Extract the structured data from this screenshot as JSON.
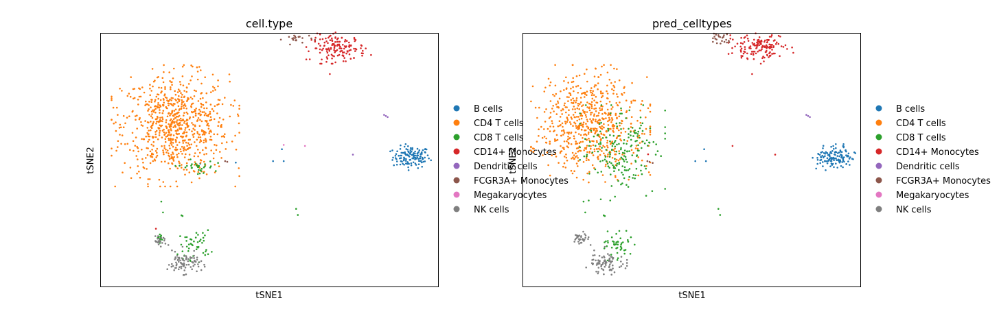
{
  "figure": {
    "background": "#ffffff"
  },
  "legend_entries": [
    {
      "label": "B cells",
      "color": "#1f77b4"
    },
    {
      "label": "CD4 T cells",
      "color": "#ff7f0e"
    },
    {
      "label": "CD8 T cells",
      "color": "#2ca02c"
    },
    {
      "label": "CD14+ Monocytes",
      "color": "#d62728"
    },
    {
      "label": "Dendritic cells",
      "color": "#9467bd"
    },
    {
      "label": "FCGR3A+ Monocytes",
      "color": "#8c564b"
    },
    {
      "label": "Megakaryocytes",
      "color": "#e377c2"
    },
    {
      "label": "NK cells",
      "color": "#7f7f7f"
    }
  ],
  "chart_data": [
    {
      "type": "scatter",
      "title": "cell.type",
      "xlabel": "tSNE1",
      "ylabel": "tSNE2",
      "xticks": [],
      "yticks": [],
      "grid": false,
      "legend_position": "right",
      "xlim": [
        -50,
        45
      ],
      "ylim": [
        -35,
        35
      ],
      "series": [
        {
          "name": "B cells",
          "color": "#1f77b4",
          "clusters": [
            {
              "center": [
                37.5,
                0.8
              ],
              "spread": [
                2.6,
                1.5
              ],
              "count": 130
            }
          ],
          "points": [
            [
              1.0,
              3.0
            ],
            [
              -1.5,
              -0.3
            ],
            [
              1.5,
              -0.3
            ],
            [
              -22,
              -1.0
            ],
            [
              -12,
              -0.7
            ]
          ]
        },
        {
          "name": "CD4 T cells",
          "color": "#ff7f0e",
          "clusters": [
            {
              "center": [
                -29,
                9.5
              ],
              "spread": [
                7.5,
                7.0
              ],
              "count": 780
            }
          ],
          "points": [
            [
              -46.5,
              14.5
            ],
            [
              -45.5,
              14.5
            ],
            [
              -42.5,
              4.5
            ]
          ]
        },
        {
          "name": "CD8 T cells",
          "color": "#2ca02c",
          "clusters": [
            {
              "center": [
                -23.5,
                -23.5
              ],
              "spread": [
                2.2,
                2.0
              ],
              "count": 45
            },
            {
              "center": [
                -23,
                -2.0
              ],
              "spread": [
                2.5,
                1.0
              ],
              "count": 30
            },
            {
              "center": [
                -33.5,
                -21.5
              ],
              "spread": [
                0.8,
                0.6
              ],
              "count": 12
            }
          ],
          "points": [
            [
              -33,
              -11.5
            ],
            [
              -32.5,
              -14.5
            ],
            [
              -27,
              -15.5
            ],
            [
              -27.3,
              -15.3
            ],
            [
              5,
              -13.5
            ],
            [
              5.5,
              -15.2
            ]
          ]
        },
        {
          "name": "CD14+ Monocytes",
          "color": "#d62728",
          "clusters": [
            {
              "center": [
                17,
                31.0
              ],
              "spread": [
                3.8,
                1.8
              ],
              "count": 145
            }
          ],
          "points": [
            [
              14.5,
              23.8
            ],
            [
              -34.5,
              -19.0
            ]
          ]
        },
        {
          "name": "Dendritic cells",
          "color": "#9467bd",
          "points": [
            [
              29.8,
              12.5
            ],
            [
              30.3,
              12.2
            ],
            [
              30.8,
              11.9
            ],
            [
              21.0,
              1.5
            ]
          ]
        },
        {
          "name": "FCGR3A+ Monocytes",
          "color": "#8c564b",
          "clusters": [
            {
              "center": [
                5.5,
                33.5
              ],
              "spread": [
                2.0,
                0.7
              ],
              "count": 22
            }
          ],
          "points": [
            [
              -15.0,
              -0.3
            ],
            [
              -14.4,
              -0.5
            ]
          ]
        },
        {
          "name": "Megakaryocytes",
          "color": "#e377c2",
          "points": [
            [
              1.5,
              4.2
            ],
            [
              7.5,
              3.9
            ]
          ]
        },
        {
          "name": "NK cells",
          "color": "#7f7f7f",
          "clusters": [
            {
              "center": [
                -26.5,
                -28.5
              ],
              "spread": [
                2.4,
                1.4
              ],
              "count": 80
            },
            {
              "center": [
                -33.5,
                -22.5
              ],
              "spread": [
                1.0,
                0.6
              ],
              "count": 22
            }
          ],
          "points": [
            [
              -30,
              -25
            ],
            [
              -28.5,
              -26.5
            ],
            [
              -31,
              -23.5
            ],
            [
              -27,
              -24
            ]
          ]
        }
      ]
    },
    {
      "type": "scatter",
      "title": "pred_celltypes",
      "xlabel": "tSNE1",
      "ylabel": "tSNE2",
      "xticks": [],
      "yticks": [],
      "grid": false,
      "legend_position": "right",
      "xlim": [
        -50,
        45
      ],
      "ylim": [
        -35,
        35
      ],
      "series": [
        {
          "name": "B cells",
          "color": "#1f77b4",
          "clusters": [
            {
              "center": [
                37.5,
                0.8
              ],
              "spread": [
                2.6,
                1.5
              ],
              "count": 130
            }
          ],
          "points": [
            [
              1.0,
              3.0
            ],
            [
              -1.5,
              -0.3
            ],
            [
              1.5,
              -0.3
            ]
          ]
        },
        {
          "name": "CD4 T cells",
          "color": "#ff7f0e",
          "clusters": [
            {
              "center": [
                -31,
                10.0
              ],
              "spread": [
                7.0,
                6.8
              ],
              "count": 640
            }
          ],
          "points": [
            [
              -46.5,
              14.5
            ],
            [
              -45.5,
              14.5
            ],
            [
              -42.5,
              4.5
            ]
          ]
        },
        {
          "name": "CD8 T cells",
          "color": "#2ca02c",
          "clusters": [
            {
              "center": [
                -22,
                2.0
              ],
              "spread": [
                5.0,
                5.5
              ],
              "count": 190
            },
            {
              "center": [
                -23.5,
                -23.5
              ],
              "spread": [
                2.2,
                2.0
              ],
              "count": 45
            }
          ],
          "points": [
            [
              -33,
              -11.5
            ],
            [
              -32.5,
              -14.5
            ],
            [
              -27,
              -15.5
            ],
            [
              -27.3,
              -15.3
            ],
            [
              5,
              -13.5
            ],
            [
              5.5,
              -15.2
            ]
          ]
        },
        {
          "name": "CD14+ Monocytes",
          "color": "#d62728",
          "clusters": [
            {
              "center": [
                17,
                31.0
              ],
              "spread": [
                3.8,
                1.8
              ],
              "count": 145
            }
          ],
          "points": [
            [
              14.5,
              23.8
            ],
            [
              9.0,
              3.9
            ],
            [
              21.0,
              1.5
            ],
            [
              -14.8,
              1.6
            ]
          ]
        },
        {
          "name": "Dendritic cells",
          "color": "#9467bd",
          "points": [
            [
              29.8,
              12.5
            ],
            [
              30.3,
              12.2
            ],
            [
              30.8,
              11.9
            ]
          ]
        },
        {
          "name": "FCGR3A+ Monocytes",
          "color": "#8c564b",
          "clusters": [
            {
              "center": [
                5.5,
                33.5
              ],
              "spread": [
                2.0,
                0.7
              ],
              "count": 22
            }
          ],
          "points": [
            [
              -15.0,
              -0.3
            ],
            [
              -14.4,
              -0.5
            ],
            [
              -13.5,
              -0.8
            ]
          ]
        },
        {
          "name": "Megakaryocytes",
          "color": "#e377c2",
          "points": []
        },
        {
          "name": "NK cells",
          "color": "#7f7f7f",
          "clusters": [
            {
              "center": [
                -26.5,
                -28.5
              ],
              "spread": [
                2.4,
                1.4
              ],
              "count": 80
            },
            {
              "center": [
                -33.5,
                -21.5
              ],
              "spread": [
                1.0,
                0.7
              ],
              "count": 30
            }
          ],
          "points": [
            [
              -30,
              -25
            ],
            [
              -28.5,
              -26.5
            ],
            [
              -31,
              -23.5
            ],
            [
              -27,
              -24
            ]
          ]
        }
      ]
    }
  ]
}
